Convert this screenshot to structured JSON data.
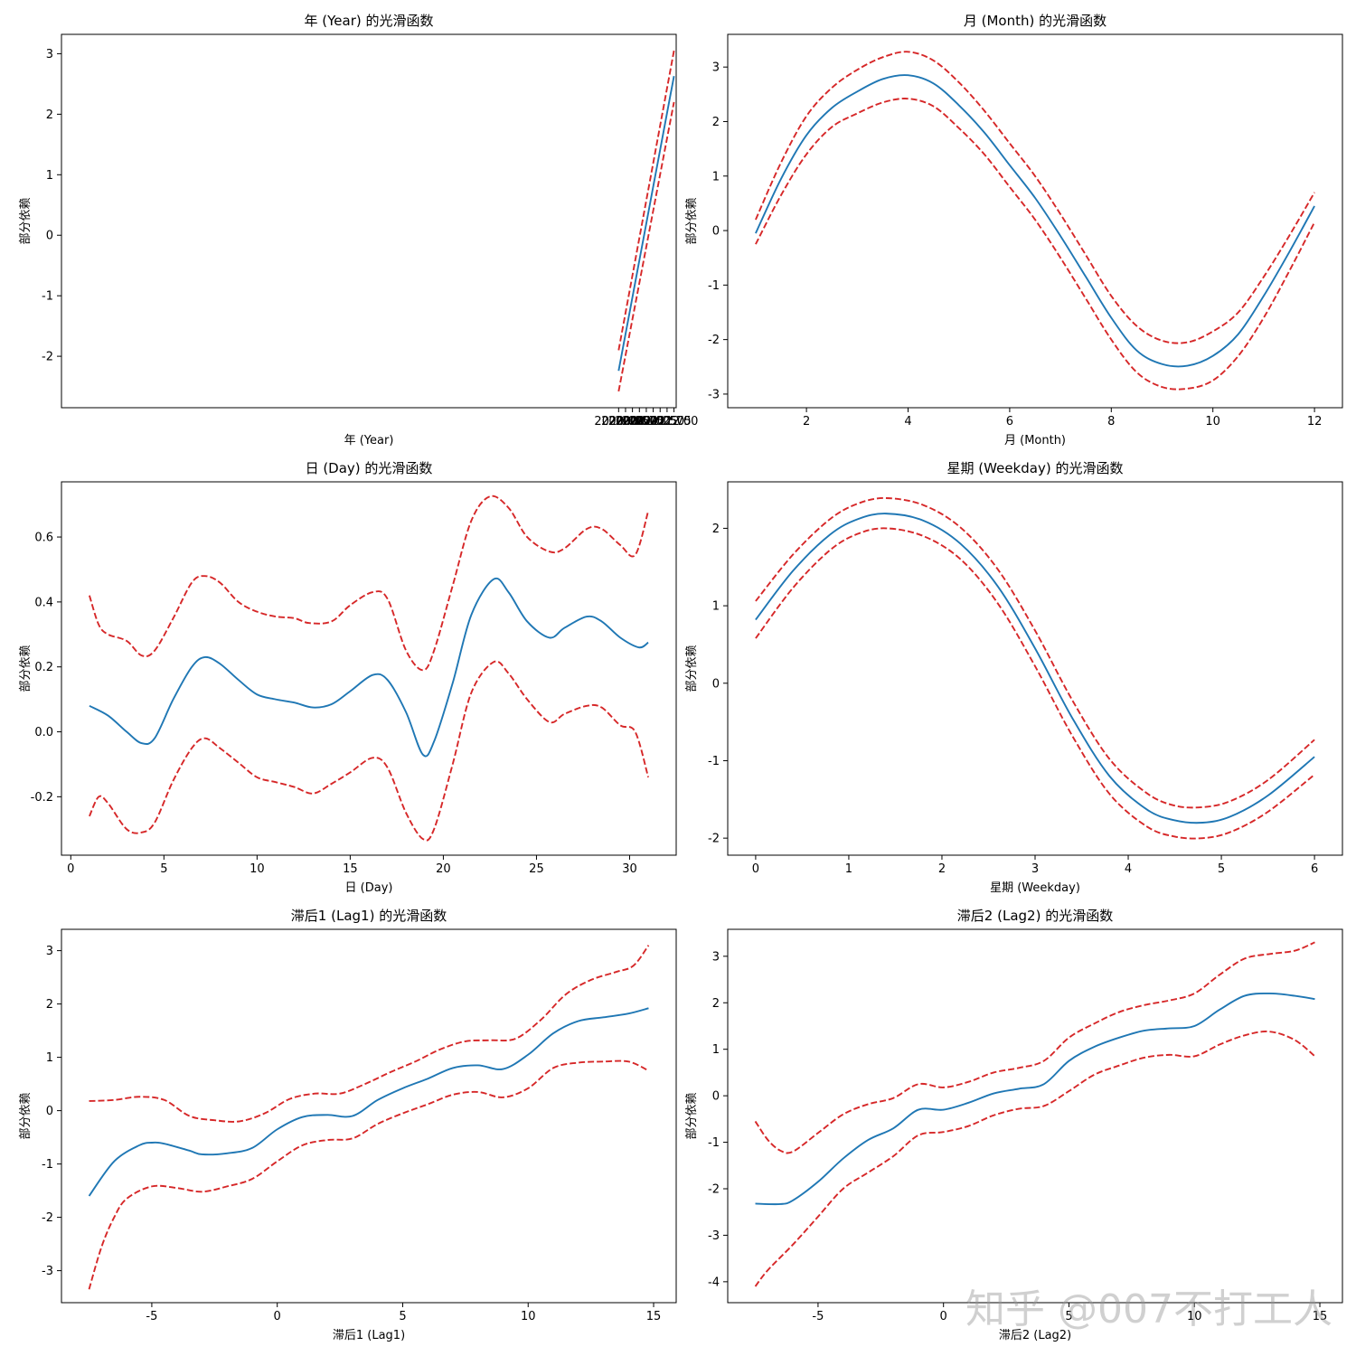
{
  "watermark": "知乎 @007不打工人",
  "colors": {
    "fit": "#1f77b4",
    "ci": "#d62728",
    "axis": "#000000"
  },
  "chart_data": [
    {
      "type": "line",
      "title": "年 (Year) 的光滑函数",
      "xlabel": "年 (Year)",
      "ylabel": "部分依赖",
      "xlim": [
        1999.87,
        2022.08
      ],
      "ylim": [
        -2.85,
        3.32
      ],
      "xticks": [
        2020.0,
        2020.25,
        2020.5,
        2020.75,
        2021.0,
        2021.25,
        2021.5,
        2021.75,
        2022.0
      ],
      "xtick_labels": [
        "2020.00",
        "2020.25",
        "2020.50",
        "2020.75",
        "2021.00",
        "2021.25",
        "2021.50",
        "2021.75",
        "2022.00"
      ],
      "yticks": [
        -2,
        -1,
        0,
        1,
        2,
        3
      ],
      "ytick_labels": [
        "-2",
        "-1",
        "0",
        "1",
        "2",
        "3"
      ],
      "series": [
        {
          "name": "fit",
          "x": [
            2020.0,
            2022.0
          ],
          "y": [
            -2.24,
            2.63
          ]
        },
        {
          "name": "upper",
          "x": [
            2020.0,
            2022.0
          ],
          "y": [
            -1.9,
            3.05
          ]
        },
        {
          "name": "lower",
          "x": [
            2020.0,
            2022.0
          ],
          "y": [
            -2.58,
            2.2
          ]
        }
      ]
    },
    {
      "type": "line",
      "title": "月 (Month) 的光滑函数",
      "xlabel": "月 (Month)",
      "ylabel": "部分依赖",
      "xlim": [
        0.45,
        12.55
      ],
      "ylim": [
        -3.25,
        3.6
      ],
      "xticks": [
        2,
        4,
        6,
        8,
        10,
        12
      ],
      "xtick_labels": [
        "2",
        "4",
        "6",
        "8",
        "10",
        "12"
      ],
      "yticks": [
        -3,
        -2,
        -1,
        0,
        1,
        2,
        3
      ],
      "ytick_labels": [
        "-3",
        "-2",
        "-1",
        "0",
        "1",
        "2",
        "3"
      ],
      "series": [
        {
          "name": "fit",
          "x": [
            1,
            1.5,
            2,
            2.5,
            3,
            3.5,
            4,
            4.5,
            5,
            5.5,
            6,
            6.5,
            7,
            7.5,
            8,
            8.5,
            9,
            9.5,
            10,
            10.5,
            11,
            11.5,
            12
          ],
          "y": [
            -0.05,
            0.95,
            1.75,
            2.25,
            2.55,
            2.78,
            2.85,
            2.7,
            2.3,
            1.8,
            1.2,
            0.6,
            -0.1,
            -0.85,
            -1.6,
            -2.2,
            -2.45,
            -2.48,
            -2.3,
            -1.9,
            -1.2,
            -0.4,
            0.45
          ]
        },
        {
          "name": "upper",
          "x": [
            1,
            1.5,
            2,
            2.5,
            3,
            3.5,
            4,
            4.5,
            5,
            5.5,
            6,
            6.5,
            7,
            7.5,
            8,
            8.5,
            9,
            9.5,
            10,
            10.5,
            11,
            11.5,
            12
          ],
          "y": [
            0.2,
            1.25,
            2.1,
            2.62,
            2.95,
            3.18,
            3.28,
            3.12,
            2.72,
            2.2,
            1.6,
            1.0,
            0.3,
            -0.45,
            -1.2,
            -1.75,
            -2.02,
            -2.05,
            -1.85,
            -1.5,
            -0.85,
            -0.1,
            0.7
          ]
        },
        {
          "name": "lower",
          "x": [
            1,
            1.5,
            2,
            2.5,
            3,
            3.5,
            4,
            4.5,
            5,
            5.5,
            6,
            6.5,
            7,
            7.5,
            8,
            8.5,
            9,
            9.5,
            10,
            10.5,
            11,
            11.5,
            12
          ],
          "y": [
            -0.25,
            0.65,
            1.4,
            1.9,
            2.15,
            2.35,
            2.42,
            2.28,
            1.88,
            1.4,
            0.8,
            0.2,
            -0.5,
            -1.25,
            -2.0,
            -2.6,
            -2.87,
            -2.9,
            -2.75,
            -2.3,
            -1.6,
            -0.75,
            0.15
          ]
        }
      ]
    },
    {
      "type": "line",
      "title": "日 (Day) 的光滑函数",
      "xlabel": "日 (Day)",
      "ylabel": "部分依赖",
      "xlim": [
        -0.5,
        32.5
      ],
      "ylim": [
        -0.38,
        0.77
      ],
      "xticks": [
        0,
        5,
        10,
        15,
        20,
        25,
        30
      ],
      "xtick_labels": [
        "0",
        "5",
        "10",
        "15",
        "20",
        "25",
        "30"
      ],
      "yticks": [
        -0.2,
        0.0,
        0.2,
        0.4,
        0.6
      ],
      "ytick_labels": [
        "-0.2",
        "0.0",
        "0.2",
        "0.4",
        "0.6"
      ],
      "series": [
        {
          "name": "fit",
          "x": [
            1,
            2,
            3,
            3.8,
            4.5,
            5.5,
            6.5,
            7.2,
            8,
            9,
            10,
            11,
            12,
            13,
            14,
            15,
            16.2,
            17,
            18,
            18.9,
            19.5,
            20.5,
            21.5,
            22.7,
            23.5,
            24.5,
            25.7,
            26.5,
            27.7,
            28.5,
            29.5,
            30.5,
            31
          ],
          "y": [
            0.08,
            0.05,
            0.0,
            -0.035,
            -0.02,
            0.1,
            0.2,
            0.23,
            0.21,
            0.16,
            0.115,
            0.1,
            0.09,
            0.075,
            0.085,
            0.125,
            0.175,
            0.16,
            0.06,
            -0.07,
            -0.03,
            0.15,
            0.36,
            0.47,
            0.43,
            0.34,
            0.29,
            0.32,
            0.355,
            0.34,
            0.29,
            0.26,
            0.275
          ]
        },
        {
          "name": "upper",
          "x": [
            1,
            1.5,
            2,
            3,
            3.8,
            4.5,
            5.5,
            6.5,
            7.2,
            8,
            9,
            10,
            11,
            12,
            12.8,
            14,
            15,
            16.2,
            17,
            18,
            18.9,
            19.5,
            20.5,
            21.5,
            22.5,
            23.5,
            24.5,
            25.7,
            26.5,
            27.7,
            28.5,
            29.5,
            30.3,
            31
          ],
          "y": [
            0.42,
            0.33,
            0.3,
            0.28,
            0.235,
            0.25,
            0.35,
            0.46,
            0.48,
            0.46,
            0.4,
            0.37,
            0.355,
            0.35,
            0.335,
            0.34,
            0.39,
            0.43,
            0.41,
            0.25,
            0.19,
            0.25,
            0.45,
            0.65,
            0.725,
            0.69,
            0.6,
            0.555,
            0.565,
            0.625,
            0.625,
            0.575,
            0.545,
            0.68
          ]
        },
        {
          "name": "lower",
          "x": [
            1,
            1.5,
            2,
            3,
            3.8,
            4.5,
            5.5,
            6.5,
            7.2,
            8,
            9,
            10,
            11,
            12,
            13,
            14,
            15,
            16.2,
            17,
            18,
            18.9,
            19.5,
            20.5,
            21.5,
            22.7,
            23.5,
            24.5,
            25.7,
            26.5,
            27.7,
            28.5,
            29.5,
            30.3,
            31
          ],
          "y": [
            -0.26,
            -0.2,
            -0.22,
            -0.3,
            -0.31,
            -0.28,
            -0.15,
            -0.05,
            -0.02,
            -0.05,
            -0.095,
            -0.14,
            -0.155,
            -0.17,
            -0.19,
            -0.16,
            -0.125,
            -0.08,
            -0.11,
            -0.25,
            -0.33,
            -0.3,
            -0.1,
            0.12,
            0.215,
            0.18,
            0.1,
            0.03,
            0.055,
            0.08,
            0.075,
            0.02,
            0.0,
            -0.14
          ]
        }
      ]
    },
    {
      "type": "line",
      "title": "星期 (Weekday) 的光滑函数",
      "xlabel": "星期 (Weekday)",
      "ylabel": "部分依赖",
      "xlim": [
        -0.3,
        6.3
      ],
      "ylim": [
        -2.22,
        2.6
      ],
      "xticks": [
        0,
        1,
        2,
        3,
        4,
        5,
        6
      ],
      "xtick_labels": [
        "0",
        "1",
        "2",
        "3",
        "4",
        "5",
        "6"
      ],
      "yticks": [
        -2,
        -1,
        0,
        1,
        2
      ],
      "ytick_labels": [
        "-2",
        "-1",
        "0",
        "1",
        "2"
      ],
      "series": [
        {
          "name": "fit",
          "x": [
            0,
            0.4,
            0.8,
            1.1,
            1.4,
            1.8,
            2.2,
            2.6,
            3.0,
            3.4,
            3.8,
            4.2,
            4.5,
            4.8,
            5.1,
            5.5,
            6.0
          ],
          "y": [
            0.82,
            1.45,
            1.92,
            2.12,
            2.19,
            2.1,
            1.8,
            1.25,
            0.45,
            -0.45,
            -1.2,
            -1.63,
            -1.77,
            -1.8,
            -1.72,
            -1.45,
            -0.95
          ]
        },
        {
          "name": "upper",
          "x": [
            0,
            0.4,
            0.8,
            1.1,
            1.4,
            1.8,
            2.2,
            2.6,
            3.0,
            3.4,
            3.8,
            4.2,
            4.5,
            4.8,
            5.1,
            5.5,
            6.0
          ],
          "y": [
            1.06,
            1.66,
            2.12,
            2.32,
            2.39,
            2.3,
            2.01,
            1.47,
            0.68,
            -0.22,
            -0.98,
            -1.42,
            -1.58,
            -1.6,
            -1.52,
            -1.25,
            -0.73
          ]
        },
        {
          "name": "lower",
          "x": [
            0,
            0.4,
            0.8,
            1.1,
            1.4,
            1.8,
            2.2,
            2.6,
            3.0,
            3.4,
            3.8,
            4.2,
            4.5,
            4.8,
            5.1,
            5.5,
            6.0
          ],
          "y": [
            0.58,
            1.23,
            1.72,
            1.93,
            2.0,
            1.9,
            1.6,
            1.03,
            0.22,
            -0.68,
            -1.43,
            -1.85,
            -1.98,
            -2.0,
            -1.92,
            -1.66,
            -1.18
          ]
        }
      ]
    },
    {
      "type": "line",
      "title": "滞后1 (Lag1) 的光滑函数",
      "xlabel": "滞后1 (Lag1)",
      "ylabel": "部分依赖",
      "xlim": [
        -8.6,
        15.9
      ],
      "ylim": [
        -3.6,
        3.4
      ],
      "xticks": [
        -5,
        0,
        5,
        10,
        15
      ],
      "xtick_labels": [
        "-5",
        "0",
        "5",
        "10",
        "15"
      ],
      "yticks": [
        -3,
        -2,
        -1,
        0,
        1,
        2,
        3
      ],
      "ytick_labels": [
        "-3",
        "-2",
        "-1",
        "0",
        "1",
        "2",
        "3"
      ],
      "series": [
        {
          "name": "fit",
          "x": [
            -7.5,
            -6.5,
            -5.5,
            -5,
            -4.5,
            -3.5,
            -3,
            -2,
            -1,
            0,
            1,
            2,
            3,
            4,
            5,
            6,
            7,
            8,
            9,
            10,
            11,
            12,
            13,
            14,
            14.8
          ],
          "y": [
            -1.6,
            -0.95,
            -0.65,
            -0.6,
            -0.62,
            -0.75,
            -0.82,
            -0.8,
            -0.7,
            -0.35,
            -0.12,
            -0.08,
            -0.1,
            0.2,
            0.42,
            0.6,
            0.8,
            0.85,
            0.78,
            1.05,
            1.45,
            1.68,
            1.75,
            1.82,
            1.92
          ]
        },
        {
          "name": "upper",
          "x": [
            -7.5,
            -6.5,
            -5.5,
            -4.5,
            -3.5,
            -2.5,
            -1.5,
            -0.5,
            0.5,
            1.5,
            2.5,
            3.5,
            4.5,
            5.5,
            6.5,
            7.5,
            8.5,
            9.5,
            10.5,
            11.5,
            12.5,
            13.5,
            14.2,
            14.8
          ],
          "y": [
            0.18,
            0.2,
            0.26,
            0.2,
            -0.1,
            -0.18,
            -0.2,
            -0.05,
            0.22,
            0.32,
            0.32,
            0.5,
            0.72,
            0.92,
            1.15,
            1.3,
            1.32,
            1.35,
            1.7,
            2.18,
            2.45,
            2.6,
            2.72,
            3.1
          ]
        },
        {
          "name": "lower",
          "x": [
            -7.5,
            -7,
            -6.5,
            -6,
            -5,
            -4,
            -3,
            -2,
            -1,
            0,
            1,
            2,
            3,
            4,
            5,
            6,
            7,
            8,
            9,
            10,
            11,
            12,
            13,
            14,
            14.8
          ],
          "y": [
            -3.35,
            -2.55,
            -2.0,
            -1.65,
            -1.42,
            -1.45,
            -1.52,
            -1.42,
            -1.28,
            -0.95,
            -0.65,
            -0.55,
            -0.52,
            -0.25,
            -0.05,
            0.12,
            0.3,
            0.35,
            0.25,
            0.42,
            0.8,
            0.9,
            0.92,
            0.92,
            0.75
          ]
        }
      ]
    },
    {
      "type": "line",
      "title": "滞后2 (Lag2) 的光滑函数",
      "xlabel": "滞后2 (Lag2)",
      "ylabel": "部分依赖",
      "xlim": [
        -8.6,
        15.9
      ],
      "ylim": [
        -4.45,
        3.58
      ],
      "xticks": [
        -5,
        0,
        5,
        10,
        15
      ],
      "xtick_labels": [
        "-5",
        "0",
        "5",
        "10",
        "15"
      ],
      "yticks": [
        -4,
        -3,
        -2,
        -1,
        0,
        1,
        2,
        3
      ],
      "ytick_labels": [
        "-4",
        "-3",
        "-2",
        "-1",
        "0",
        "1",
        "2",
        "3"
      ],
      "series": [
        {
          "name": "fit",
          "x": [
            -7.5,
            -6.5,
            -6,
            -5,
            -4,
            -3,
            -2,
            -1,
            0,
            1,
            2,
            3,
            4,
            5,
            6,
            7,
            8,
            9,
            10,
            11,
            12,
            13,
            14,
            14.8
          ],
          "y": [
            -2.32,
            -2.33,
            -2.25,
            -1.85,
            -1.35,
            -0.95,
            -0.7,
            -0.3,
            -0.3,
            -0.15,
            0.05,
            0.15,
            0.25,
            0.75,
            1.05,
            1.25,
            1.4,
            1.45,
            1.5,
            1.85,
            2.15,
            2.2,
            2.15,
            2.08
          ]
        },
        {
          "name": "upper",
          "x": [
            -7.5,
            -7,
            -6.5,
            -6,
            -5,
            -4,
            -3,
            -2,
            -1,
            0,
            1,
            2,
            3,
            4,
            5,
            6,
            7,
            8,
            9,
            10,
            11,
            12,
            13,
            14,
            14.8
          ],
          "y": [
            -0.55,
            -0.95,
            -1.18,
            -1.2,
            -0.8,
            -0.4,
            -0.18,
            -0.05,
            0.25,
            0.18,
            0.3,
            0.5,
            0.6,
            0.75,
            1.25,
            1.55,
            1.8,
            1.95,
            2.05,
            2.2,
            2.6,
            2.95,
            3.05,
            3.12,
            3.3
          ]
        },
        {
          "name": "lower",
          "x": [
            -7.5,
            -7,
            -6,
            -5,
            -4,
            -3,
            -2,
            -1,
            0,
            1,
            2,
            3,
            4,
            5,
            6,
            7,
            8,
            9,
            10,
            11,
            12,
            13,
            14,
            14.8
          ],
          "y": [
            -4.1,
            -3.75,
            -3.2,
            -2.6,
            -2.0,
            -1.65,
            -1.3,
            -0.85,
            -0.78,
            -0.65,
            -0.42,
            -0.28,
            -0.22,
            0.1,
            0.45,
            0.65,
            0.82,
            0.88,
            0.85,
            1.1,
            1.3,
            1.38,
            1.2,
            0.85
          ]
        }
      ]
    }
  ]
}
